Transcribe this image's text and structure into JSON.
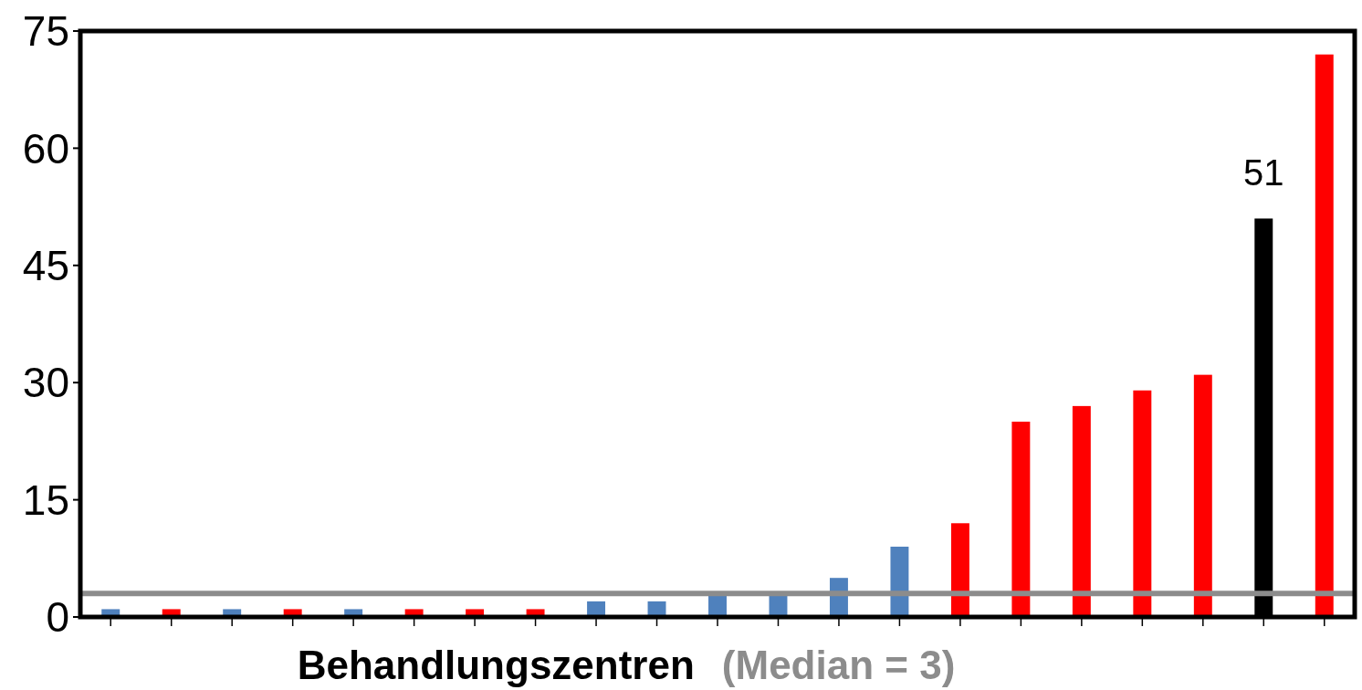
{
  "chart_data": {
    "type": "bar",
    "xlabel": "Behandlungszentren",
    "categories": [
      null,
      null,
      null,
      null,
      null,
      null,
      null,
      null,
      null,
      null,
      null,
      null,
      null,
      null,
      null,
      null,
      null,
      null,
      null,
      null,
      null
    ],
    "values": [
      1,
      1,
      1,
      1,
      1,
      1,
      1,
      1,
      2,
      2,
      3,
      3,
      5,
      9,
      12,
      25,
      27,
      29,
      31,
      51,
      72
    ],
    "colors": [
      "#4f81bd",
      "#ff0000",
      "#4f81bd",
      "#ff0000",
      "#4f81bd",
      "#ff0000",
      "#ff0000",
      "#ff0000",
      "#4f81bd",
      "#4f81bd",
      "#4f81bd",
      "#4f81bd",
      "#4f81bd",
      "#4f81bd",
      "#ff0000",
      "#ff0000",
      "#ff0000",
      "#ff0000",
      "#ff0000",
      "#000000",
      "#ff0000"
    ],
    "value_labels": [
      null,
      null,
      null,
      null,
      null,
      null,
      null,
      null,
      null,
      null,
      null,
      null,
      null,
      null,
      null,
      null,
      null,
      null,
      null,
      "51",
      null
    ],
    "ylim": [
      0,
      75
    ],
    "yticks": [
      0,
      15,
      30,
      45,
      60,
      75
    ],
    "grid": false,
    "ref_lines": [
      {
        "axis": "y",
        "value": 3,
        "label": "(Median = 3)",
        "color": "#8c8c8c"
      }
    ]
  }
}
